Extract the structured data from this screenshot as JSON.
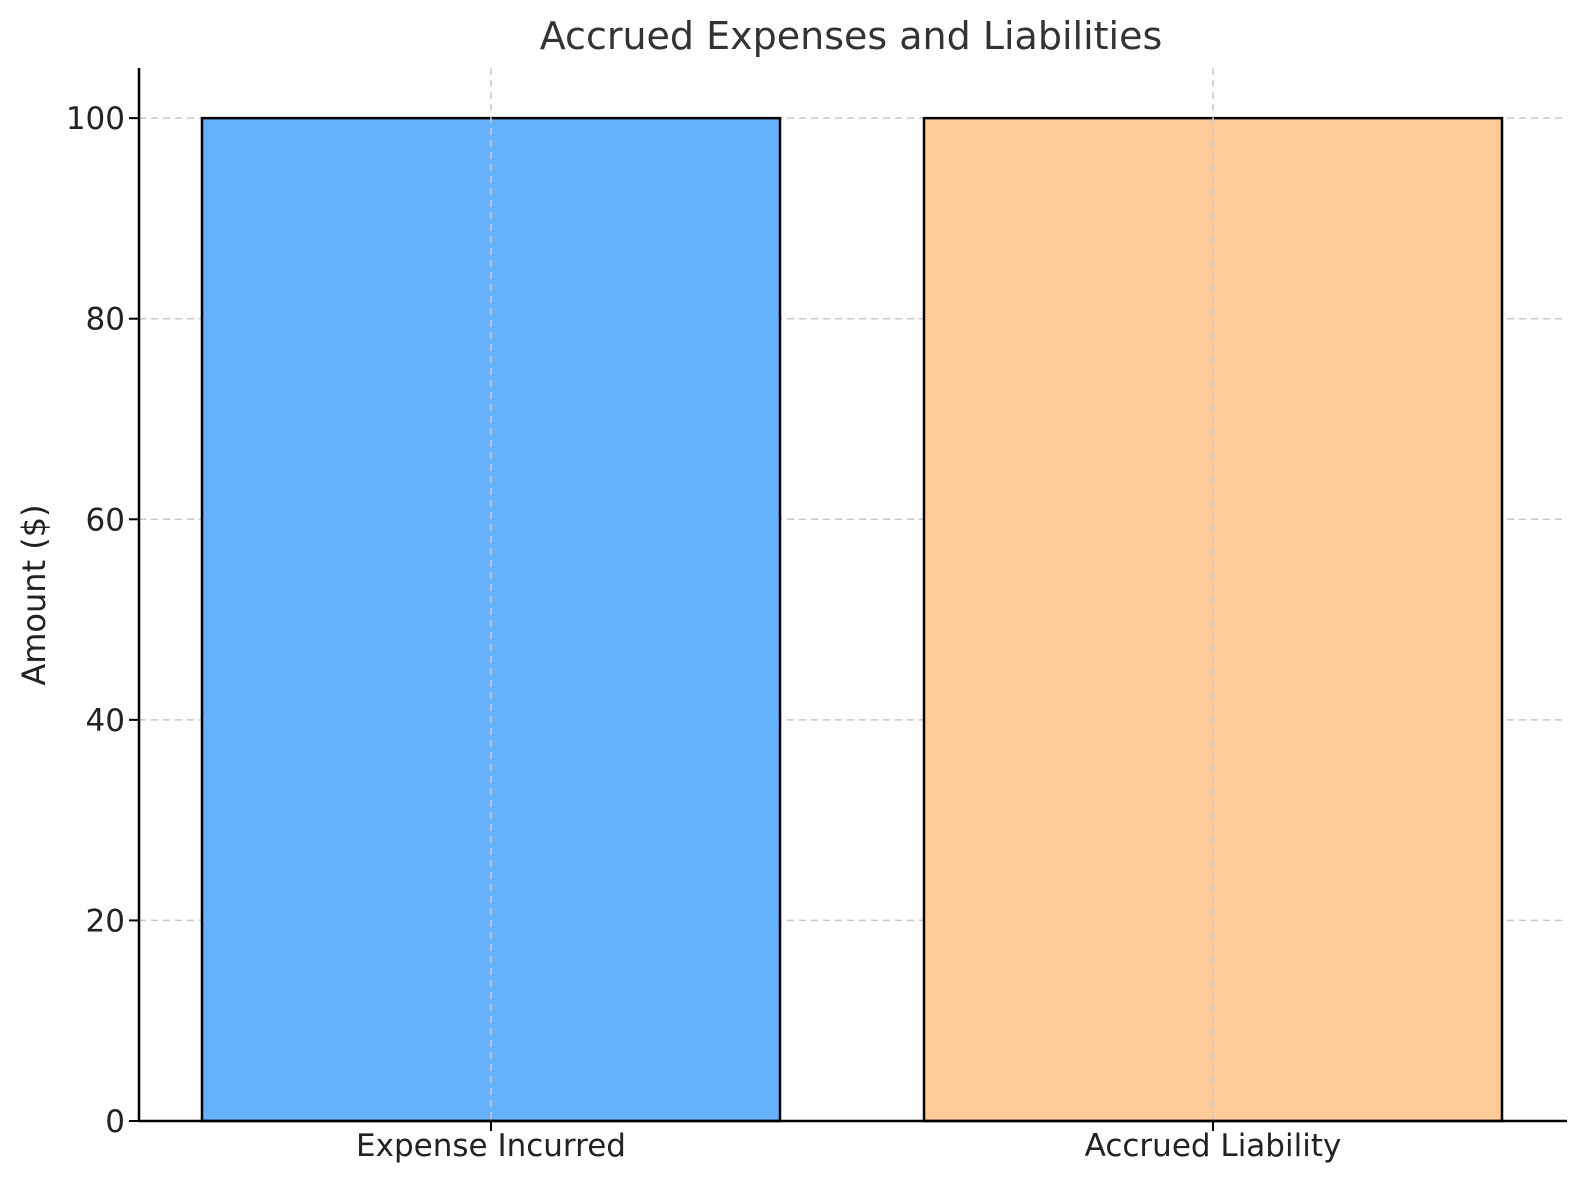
{
  "chart_data": {
    "type": "bar",
    "title": "Accrued Expenses and Liabilities",
    "xlabel": "",
    "ylabel": "Amount ($)",
    "categories": [
      "Expense Incurred",
      "Accrued Liability"
    ],
    "values": [
      100,
      100
    ],
    "colors": [
      "#66b2ff",
      "#ffcc99"
    ],
    "ylim": [
      0,
      105
    ],
    "yticks": [
      0,
      20,
      40,
      60,
      80,
      100
    ],
    "grid": true,
    "legend": "none"
  }
}
